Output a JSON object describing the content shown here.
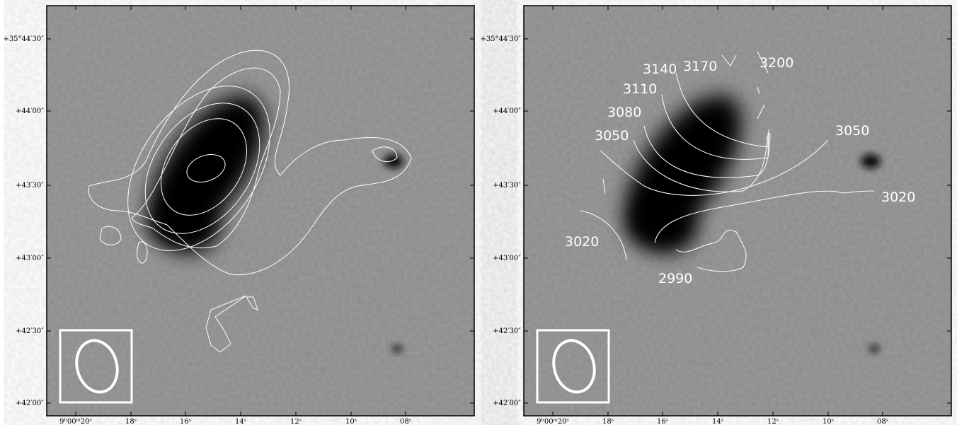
{
  "axes": {
    "y_ticks": [
      "+35°44′30″",
      "+44′00″",
      "+43′30″",
      "+43′00″",
      "+42′30″",
      "+42′00″"
    ],
    "x_ticks": [
      "9ʰ00ᵐ20ˢ",
      "18ˢ",
      "16ˢ",
      "14ˢ",
      "12ˢ",
      "10ˢ",
      "08ˢ"
    ]
  },
  "contour_labels": [
    3140,
    3170,
    3200,
    3110,
    3080,
    3050,
    3050,
    3020,
    3020,
    2990
  ]
}
